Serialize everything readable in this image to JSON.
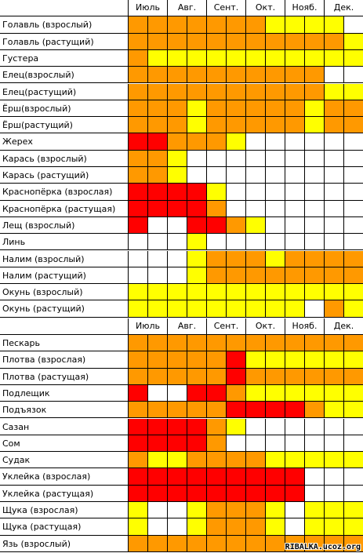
{
  "colors": {
    "0": "#ffffff",
    "1": "#ffff00",
    "2": "#ff9900",
    "3": "#ff0000"
  },
  "months": [
    "Июль",
    "Авг.",
    "Сент.",
    "Окт.",
    "Нояб.",
    "Дек."
  ],
  "section1": [
    {
      "name": "Голавль (взрослый)",
      "cells": [
        2,
        2,
        2,
        2,
        2,
        2,
        2,
        1,
        1,
        1,
        1,
        0
      ]
    },
    {
      "name": "Голавль (растущий)",
      "cells": [
        2,
        2,
        2,
        2,
        2,
        2,
        2,
        2,
        2,
        2,
        2,
        1
      ]
    },
    {
      "name": "Густера",
      "cells": [
        2,
        1,
        1,
        1,
        1,
        1,
        1,
        1,
        1,
        1,
        1,
        1
      ]
    },
    {
      "name": "Елец(взрослый)",
      "cells": [
        2,
        2,
        2,
        2,
        2,
        2,
        2,
        2,
        2,
        2,
        0,
        0
      ]
    },
    {
      "name": "Елец(растущий)",
      "cells": [
        2,
        2,
        2,
        2,
        2,
        2,
        2,
        2,
        2,
        2,
        1,
        1
      ]
    },
    {
      "name": "Ёрш(взрослый)",
      "cells": [
        2,
        2,
        2,
        1,
        2,
        2,
        2,
        2,
        2,
        1,
        2,
        2
      ]
    },
    {
      "name": "Ёрш(растущий)",
      "cells": [
        2,
        2,
        2,
        1,
        2,
        2,
        2,
        2,
        2,
        1,
        2,
        2
      ]
    },
    {
      "name": "Жерех",
      "cells": [
        3,
        3,
        2,
        2,
        2,
        1,
        0,
        0,
        0,
        0,
        0,
        0
      ]
    },
    {
      "name": "Карась (взрослый)",
      "cells": [
        2,
        2,
        1,
        0,
        0,
        0,
        0,
        0,
        0,
        0,
        0,
        0
      ]
    },
    {
      "name": "Карась (растущий)",
      "cells": [
        2,
        2,
        1,
        0,
        0,
        0,
        0,
        0,
        0,
        0,
        0,
        0
      ]
    },
    {
      "name": "Краснопёрка (взрослая)",
      "cells": [
        3,
        3,
        3,
        3,
        1,
        0,
        0,
        0,
        0,
        0,
        0,
        0
      ]
    },
    {
      "name": "Краснопёрка (растущая)",
      "cells": [
        3,
        3,
        3,
        3,
        2,
        0,
        0,
        0,
        0,
        0,
        0,
        0
      ]
    },
    {
      "name": "Лещ (взрослый)",
      "cells": [
        3,
        0,
        0,
        3,
        3,
        2,
        1,
        0,
        0,
        0,
        0,
        0
      ]
    },
    {
      "name": "Линь",
      "cells": [
        0,
        0,
        0,
        1,
        0,
        0,
        0,
        0,
        0,
        0,
        0,
        0
      ]
    },
    {
      "name": "Налим (взрослый)",
      "cells": [
        0,
        0,
        0,
        1,
        2,
        2,
        2,
        1,
        2,
        2,
        2,
        2
      ]
    },
    {
      "name": "Налим (растущий)",
      "cells": [
        0,
        0,
        0,
        1,
        2,
        2,
        2,
        2,
        2,
        2,
        2,
        2
      ]
    },
    {
      "name": "Окунь (взрослый)",
      "cells": [
        1,
        1,
        1,
        1,
        1,
        1,
        1,
        1,
        1,
        1,
        1,
        1
      ]
    },
    {
      "name": "Окунь (растущий)",
      "cells": [
        1,
        1,
        1,
        1,
        1,
        1,
        1,
        1,
        1,
        0,
        2,
        1
      ]
    }
  ],
  "section2": [
    {
      "name": "Пескарь",
      "cells": [
        2,
        2,
        2,
        2,
        2,
        2,
        2,
        2,
        2,
        2,
        2,
        2
      ]
    },
    {
      "name": "Плотва (взрослая)",
      "cells": [
        2,
        2,
        2,
        2,
        2,
        3,
        1,
        1,
        1,
        1,
        1,
        1
      ]
    },
    {
      "name": "Плотва (растущая)",
      "cells": [
        2,
        2,
        2,
        2,
        2,
        3,
        2,
        2,
        2,
        2,
        2,
        2
      ]
    },
    {
      "name": "Подлещик",
      "cells": [
        3,
        0,
        0,
        3,
        3,
        2,
        1,
        1,
        1,
        1,
        1,
        1
      ]
    },
    {
      "name": "Подъязок",
      "cells": [
        2,
        2,
        2,
        2,
        2,
        3,
        3,
        3,
        3,
        2,
        1,
        1
      ]
    },
    {
      "name": "Сазан",
      "cells": [
        3,
        3,
        3,
        3,
        2,
        1,
        0,
        0,
        0,
        0,
        0,
        0
      ]
    },
    {
      "name": "Сом",
      "cells": [
        3,
        3,
        3,
        3,
        2,
        0,
        0,
        0,
        0,
        0,
        0,
        0
      ]
    },
    {
      "name": "Судак",
      "cells": [
        2,
        1,
        1,
        2,
        2,
        2,
        2,
        1,
        1,
        1,
        1,
        1
      ]
    },
    {
      "name": "Уклейка (взрослая)",
      "cells": [
        3,
        3,
        3,
        3,
        3,
        3,
        3,
        3,
        3,
        0,
        0,
        0
      ]
    },
    {
      "name": "Уклейка (растущая)",
      "cells": [
        3,
        3,
        3,
        3,
        3,
        3,
        3,
        3,
        3,
        0,
        0,
        0
      ]
    },
    {
      "name": "Щука (взрослая)",
      "cells": [
        1,
        0,
        0,
        1,
        2,
        2,
        2,
        1,
        0,
        1,
        1,
        1
      ]
    },
    {
      "name": "Щука (растущая)",
      "cells": [
        1,
        0,
        0,
        1,
        2,
        2,
        2,
        1,
        0,
        1,
        1,
        1
      ]
    },
    {
      "name": "Язь (взрослый)",
      "cells": [
        2,
        2,
        2,
        2,
        2,
        2,
        2,
        2,
        2,
        2,
        2,
        2
      ]
    }
  ],
  "watermark": "RIBALKA.ucoz.org"
}
